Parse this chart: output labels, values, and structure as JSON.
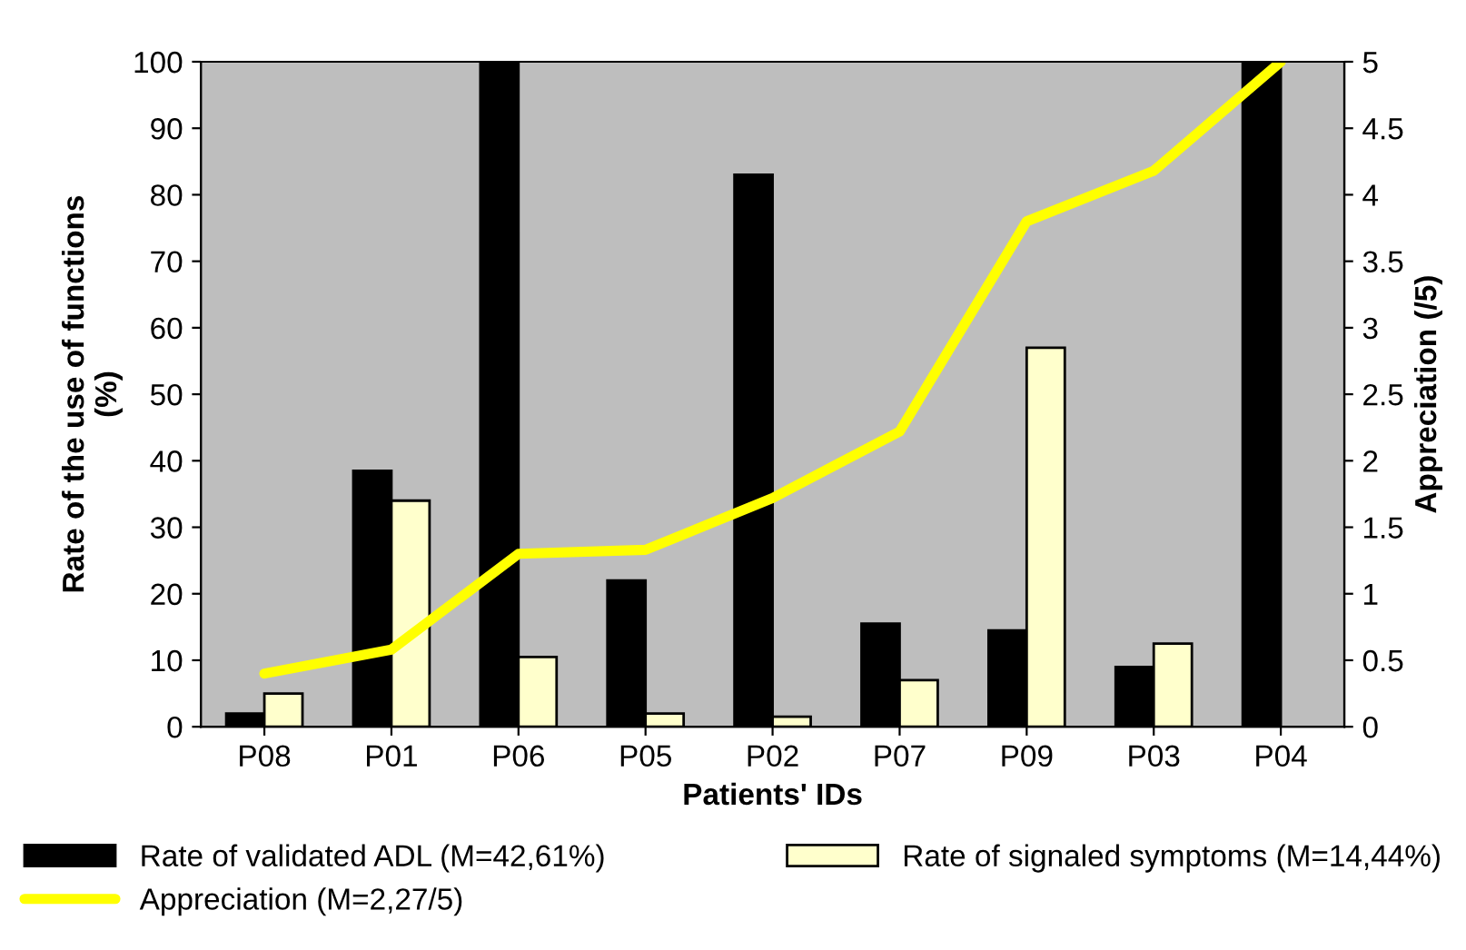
{
  "chart_data": {
    "type": "bar",
    "xlabel": "Patients' IDs",
    "ylabel": "Rate of the use of functions\n(%)",
    "y2label": "Appreciation (/5)",
    "categories": [
      "P08",
      "P01",
      "P06",
      "P05",
      "P02",
      "P07",
      "P09",
      "P03",
      "P04"
    ],
    "series": [
      {
        "name": "Rate of validated ADL (M=42,61%)",
        "color": "#000000",
        "values": [
          2,
          38.5,
          100,
          22,
          83,
          15.5,
          14.5,
          9,
          100
        ]
      },
      {
        "name": "Rate of signaled symptoms (M=14,44%)",
        "color": "#ffffcc",
        "values": [
          5,
          34,
          10.5,
          2,
          1.5,
          7,
          57,
          12.5,
          null
        ]
      },
      {
        "name": "Appreciation (M=2,27/5)",
        "type": "line",
        "axis": "y2",
        "color": "#ffff00",
        "values": [
          0.4,
          0.58,
          1.3,
          1.33,
          1.72,
          2.22,
          3.8,
          4.18,
          5.0
        ]
      }
    ],
    "ylim": [
      0,
      100
    ],
    "yticks": [
      0,
      10,
      20,
      30,
      40,
      50,
      60,
      70,
      80,
      90,
      100
    ],
    "y2lim": [
      0,
      5
    ],
    "y2ticks": [
      0,
      0.5,
      1,
      1.5,
      2,
      2.5,
      3,
      3.5,
      4,
      4.5,
      5
    ],
    "grid": false,
    "legend": "bottom"
  }
}
